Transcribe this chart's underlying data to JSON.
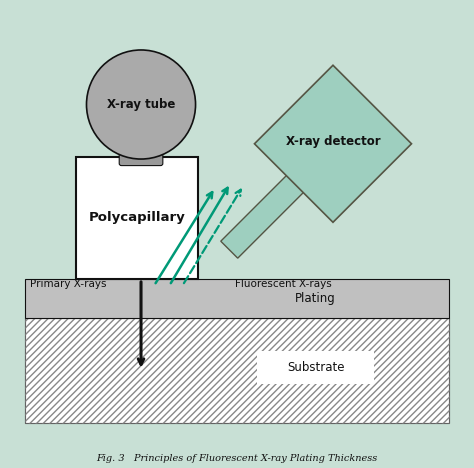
{
  "bg_color": "#c8e0d5",
  "white": "#ffffff",
  "black": "#111111",
  "gray_tube": "#aaaaaa",
  "gray_connector": "#999999",
  "plating_color": "#c0c0c0",
  "substrate_bg": "#ffffff",
  "detector_color": "#9ecfbf",
  "detector_edge": "#555544",
  "arrow_teal": "#009977",
  "title_text": "Fig. 3   Principles of Fluorescent X-ray Plating Thickness",
  "xray_tube_label": "X-ray tube",
  "polycap_label": "Polycapillary",
  "detector_label": "X-ray detector",
  "primary_label": "Primary X-rays",
  "fluorescent_label": "Fluorescent X-rays",
  "plating_label": "Plating",
  "substrate_label": "Substrate"
}
